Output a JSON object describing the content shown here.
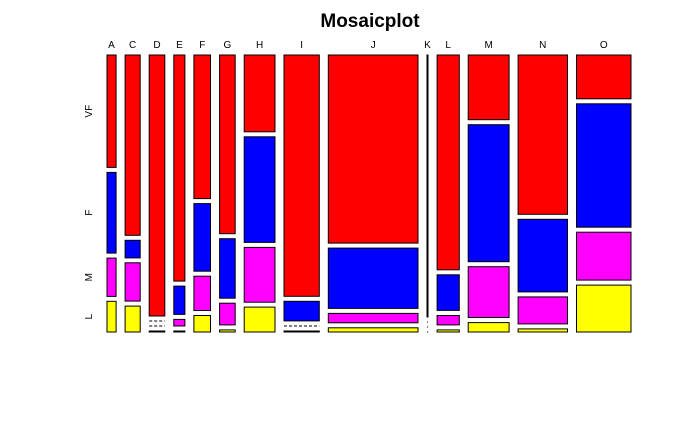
{
  "chart_data": {
    "type": "mosaic",
    "title": "Mosaicplot",
    "xlabel": "",
    "ylabel": "",
    "categories": [
      "A",
      "C",
      "D",
      "E",
      "F",
      "G",
      "H",
      "I",
      "J",
      "K",
      "L",
      "M",
      "N",
      "O"
    ],
    "y_levels": [
      "L",
      "M",
      "F",
      "VF"
    ],
    "colors": {
      "L": "#ffff00",
      "M": "#ff00ff",
      "F": "#0000ff",
      "VF": "#ff0000"
    },
    "column_proportions": [
      0.0176,
      0.0294,
      0.0304,
      0.0216,
      0.0323,
      0.0304,
      0.0598,
      0.0686,
      0.1744,
      0.002,
      0.0431,
      0.0794,
      0.096,
      0.1059
    ],
    "series": [
      {
        "name": "L",
        "values": [
          0.117,
          0.099,
          0.004,
          0.004,
          0.063,
          0.008,
          0.095,
          0.004,
          0.016,
          0.0,
          0.008,
          0.036,
          0.012,
          0.179
        ]
      },
      {
        "name": "M",
        "values": [
          0.146,
          0.146,
          0.0,
          0.025,
          0.131,
          0.083,
          0.209,
          0.0,
          0.036,
          0.0,
          0.036,
          0.194,
          0.103,
          0.183
        ]
      },
      {
        "name": "F",
        "values": [
          0.308,
          0.067,
          0.0,
          0.108,
          0.258,
          0.227,
          0.403,
          0.075,
          0.23,
          0.0,
          0.136,
          0.523,
          0.277,
          0.471
        ]
      },
      {
        "name": "VF",
        "values": [
          0.429,
          0.688,
          0.996,
          0.863,
          0.548,
          0.682,
          0.293,
          0.921,
          0.718,
          1.0,
          0.82,
          0.247,
          0.608,
          0.167
        ]
      }
    ],
    "grid": false,
    "legend": "none"
  }
}
